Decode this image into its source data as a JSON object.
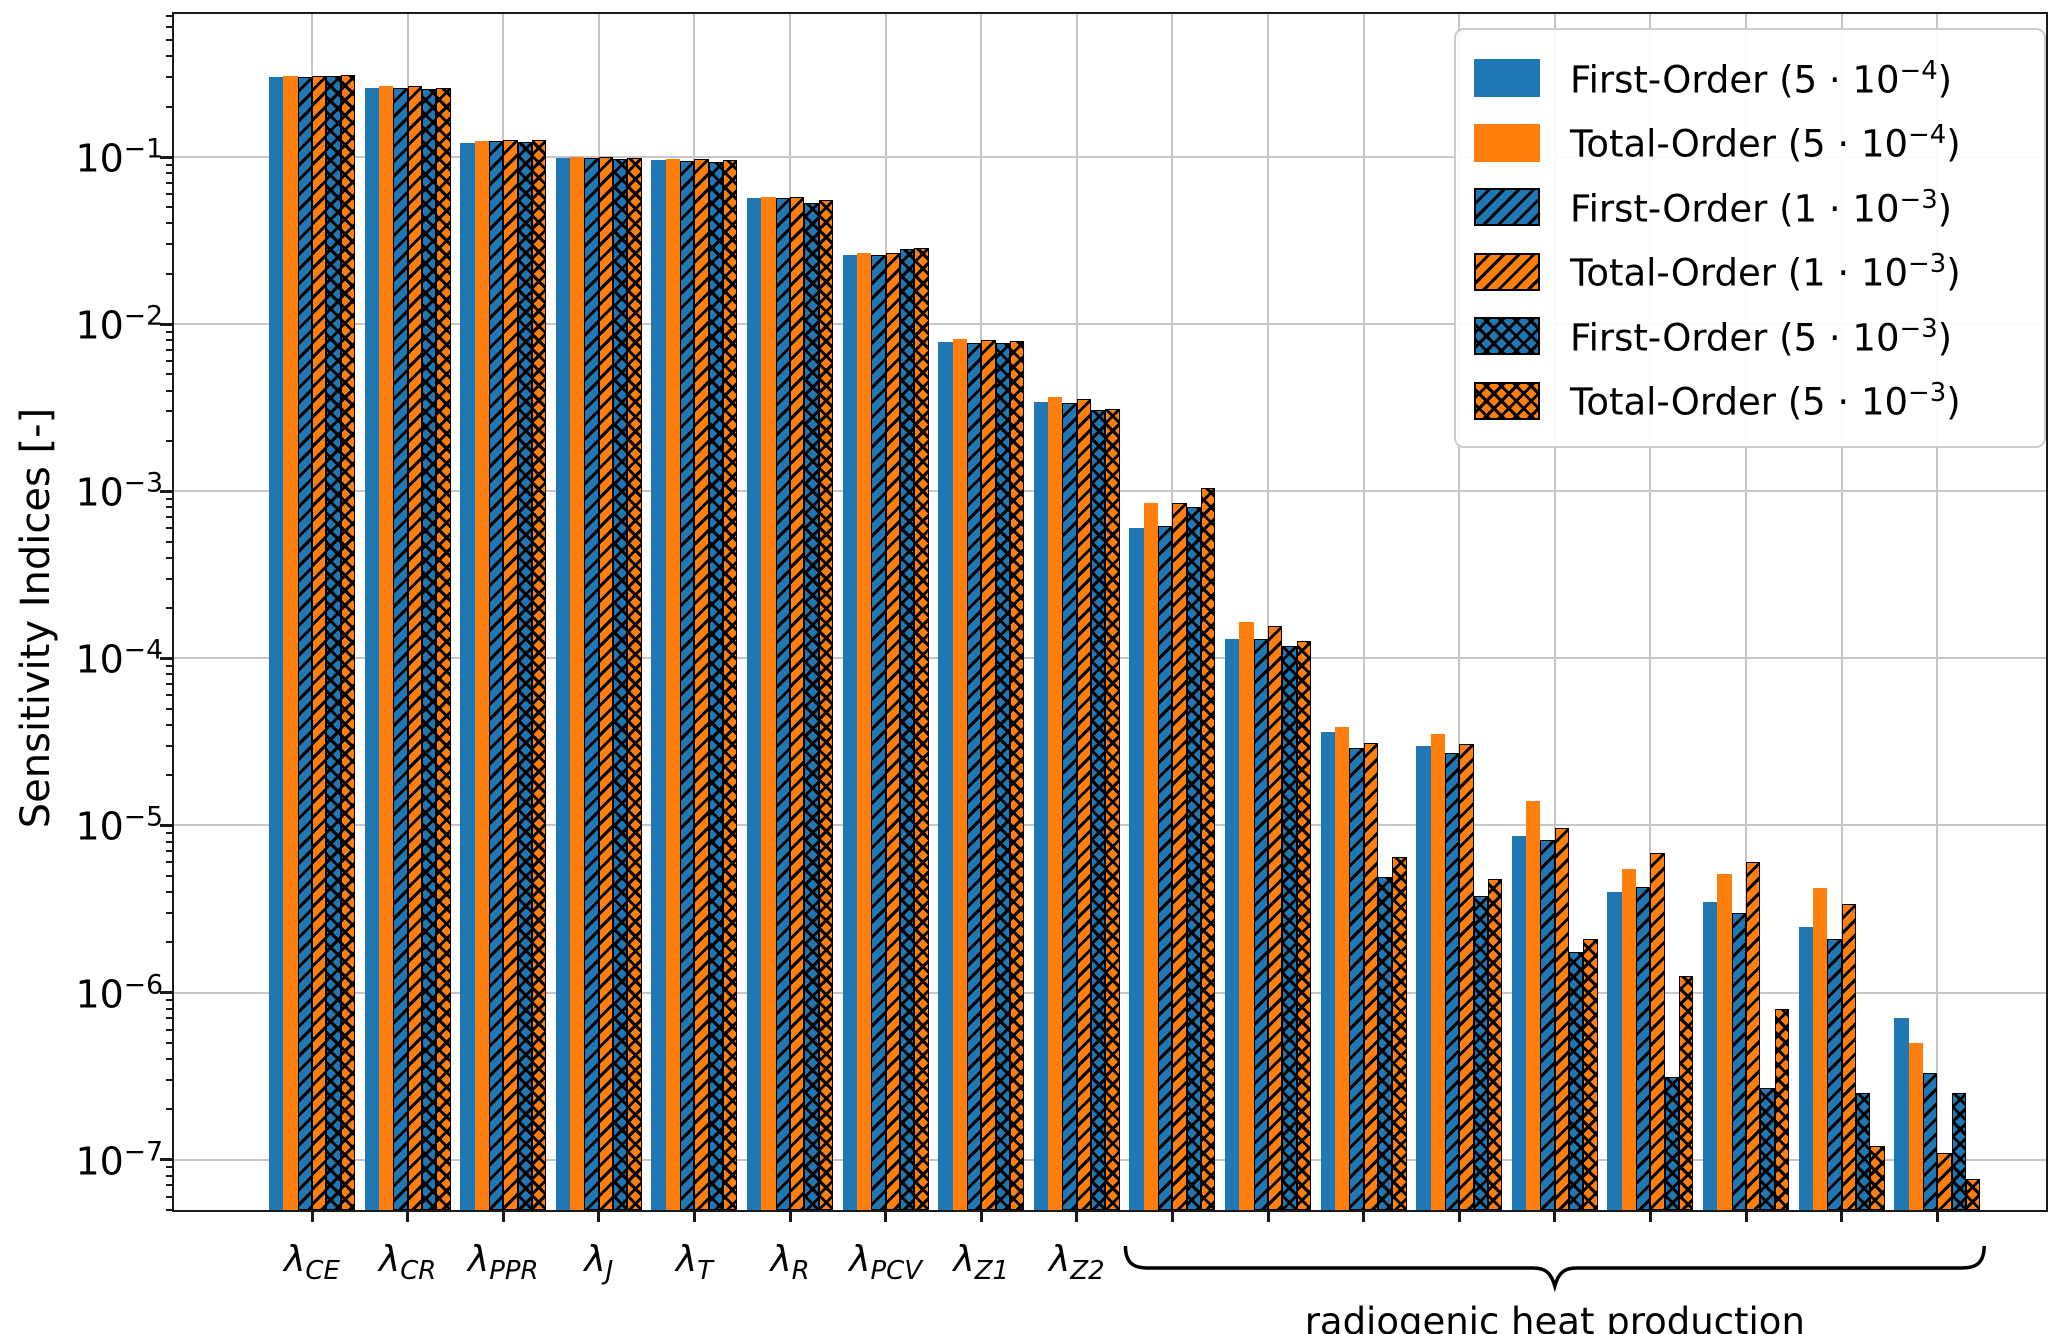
{
  "chart_data": {
    "type": "bar",
    "yscale": "log",
    "ylim": [
      5e-08,
      0.718
    ],
    "ylabel": "Sensitivity Indices [-]",
    "grid": true,
    "legend_position": "upper right",
    "ytick_exponents": [
      -1,
      -2,
      -3,
      -4,
      -5,
      -6,
      -7
    ],
    "categories": [
      "lambda_CE",
      "lambda_CR",
      "lambda_PPR",
      "lambda_J",
      "lambda_T",
      "lambda_R",
      "lambda_PCV",
      "lambda_Z1",
      "lambda_Z2",
      "rhp_1",
      "rhp_2",
      "rhp_3",
      "rhp_4",
      "rhp_5",
      "rhp_6",
      "rhp_7",
      "rhp_8",
      "rhp_9"
    ],
    "category_labels": [
      {
        "base": "λ",
        "sub": "CE"
      },
      {
        "base": "λ",
        "sub": "CR"
      },
      {
        "base": "λ",
        "sub": "PPR"
      },
      {
        "base": "λ",
        "sub": "J"
      },
      {
        "base": "λ",
        "sub": "T"
      },
      {
        "base": "λ",
        "sub": "R"
      },
      {
        "base": "λ",
        "sub": "PCV"
      },
      {
        "base": "λ",
        "sub": "Z1"
      },
      {
        "base": "λ",
        "sub": "Z2"
      },
      {
        "base": "",
        "sub": ""
      },
      {
        "base": "",
        "sub": ""
      },
      {
        "base": "",
        "sub": ""
      },
      {
        "base": "",
        "sub": ""
      },
      {
        "base": "",
        "sub": ""
      },
      {
        "base": "",
        "sub": ""
      },
      {
        "base": "",
        "sub": ""
      },
      {
        "base": "",
        "sub": ""
      },
      {
        "base": "",
        "sub": ""
      }
    ],
    "group_annotation": {
      "label": "radiogenic heat production",
      "from_index": 9,
      "to_index": 17
    },
    "series": [
      {
        "name": "First-Order (5 · 10⁻⁴)",
        "legend_parts": {
          "prefix": "First-Order",
          "coeff": "5",
          "base": "10",
          "exp": "−4"
        },
        "color": "#1f77b4",
        "hatch": "none",
        "values": [
          0.3,
          0.26,
          0.122,
          0.099,
          0.096,
          0.057,
          0.026,
          0.0078,
          0.0034,
          0.0006,
          0.00013,
          3.6e-05,
          3e-05,
          8.6e-06,
          4e-06,
          3.5e-06,
          2.45e-06,
          7e-07
        ]
      },
      {
        "name": "Total-Order (5 · 10⁻⁴)",
        "legend_parts": {
          "prefix": "Total-Order",
          "coeff": "5",
          "base": "10",
          "exp": "−4"
        },
        "color": "#ff7f0e",
        "hatch": "none",
        "values": [
          0.305,
          0.265,
          0.125,
          0.1,
          0.097,
          0.058,
          0.0265,
          0.0081,
          0.00365,
          0.00085,
          0.000165,
          3.9e-05,
          3.5e-05,
          1.4e-05,
          5.5e-06,
          5.1e-06,
          4.2e-06,
          5e-07
        ]
      },
      {
        "name": "First-Order (1 · 10⁻³)",
        "legend_parts": {
          "prefix": "First-Order",
          "coeff": "1",
          "base": "10",
          "exp": "−3"
        },
        "color": "#1f77b4",
        "hatch": "diag",
        "values": [
          0.3,
          0.26,
          0.124,
          0.098,
          0.095,
          0.057,
          0.026,
          0.0077,
          0.00335,
          0.00062,
          0.00013,
          2.9e-05,
          2.7e-05,
          8.2e-06,
          4.3e-06,
          3e-06,
          2.1e-06,
          3.3e-07
        ]
      },
      {
        "name": "Total-Order (1 · 10⁻³)",
        "legend_parts": {
          "prefix": "Total-Order",
          "coeff": "1",
          "base": "10",
          "exp": "−3"
        },
        "color": "#ff7f0e",
        "hatch": "diag",
        "values": [
          0.305,
          0.265,
          0.127,
          0.1,
          0.097,
          0.058,
          0.0265,
          0.008,
          0.00355,
          0.00085,
          0.000155,
          3.1e-05,
          3.05e-05,
          9.7e-06,
          6.8e-06,
          6e-06,
          3.4e-06,
          1.1e-07
        ]
      },
      {
        "name": "First-Order (5 · 10⁻³)",
        "legend_parts": {
          "prefix": "First-Order",
          "coeff": "5",
          "base": "10",
          "exp": "−3"
        },
        "color": "#1f77b4",
        "hatch": "cross",
        "values": [
          0.305,
          0.255,
          0.123,
          0.097,
          0.093,
          0.053,
          0.028,
          0.0077,
          0.00305,
          0.0008,
          0.000118,
          4.9e-06,
          3.8e-06,
          1.75e-06,
          3.1e-07,
          2.7e-07,
          2.5e-07,
          2.5e-07
        ]
      },
      {
        "name": "Total-Order (5 · 10⁻³)",
        "legend_parts": {
          "prefix": "Total-Order",
          "coeff": "5",
          "base": "10",
          "exp": "−3"
        },
        "color": "#ff7f0e",
        "hatch": "cross",
        "values": [
          0.31,
          0.26,
          0.126,
          0.099,
          0.096,
          0.055,
          0.0285,
          0.0079,
          0.0031,
          0.00105,
          0.000127,
          6.5e-06,
          4.8e-06,
          2.1e-06,
          1.25e-06,
          8e-07,
          1.2e-07,
          7.7e-08
        ]
      }
    ],
    "colors": {
      "blue": "#1f77b4",
      "orange": "#ff7f0e",
      "gridline": "#c6c6c6",
      "spine": "#1a1a1a"
    }
  }
}
